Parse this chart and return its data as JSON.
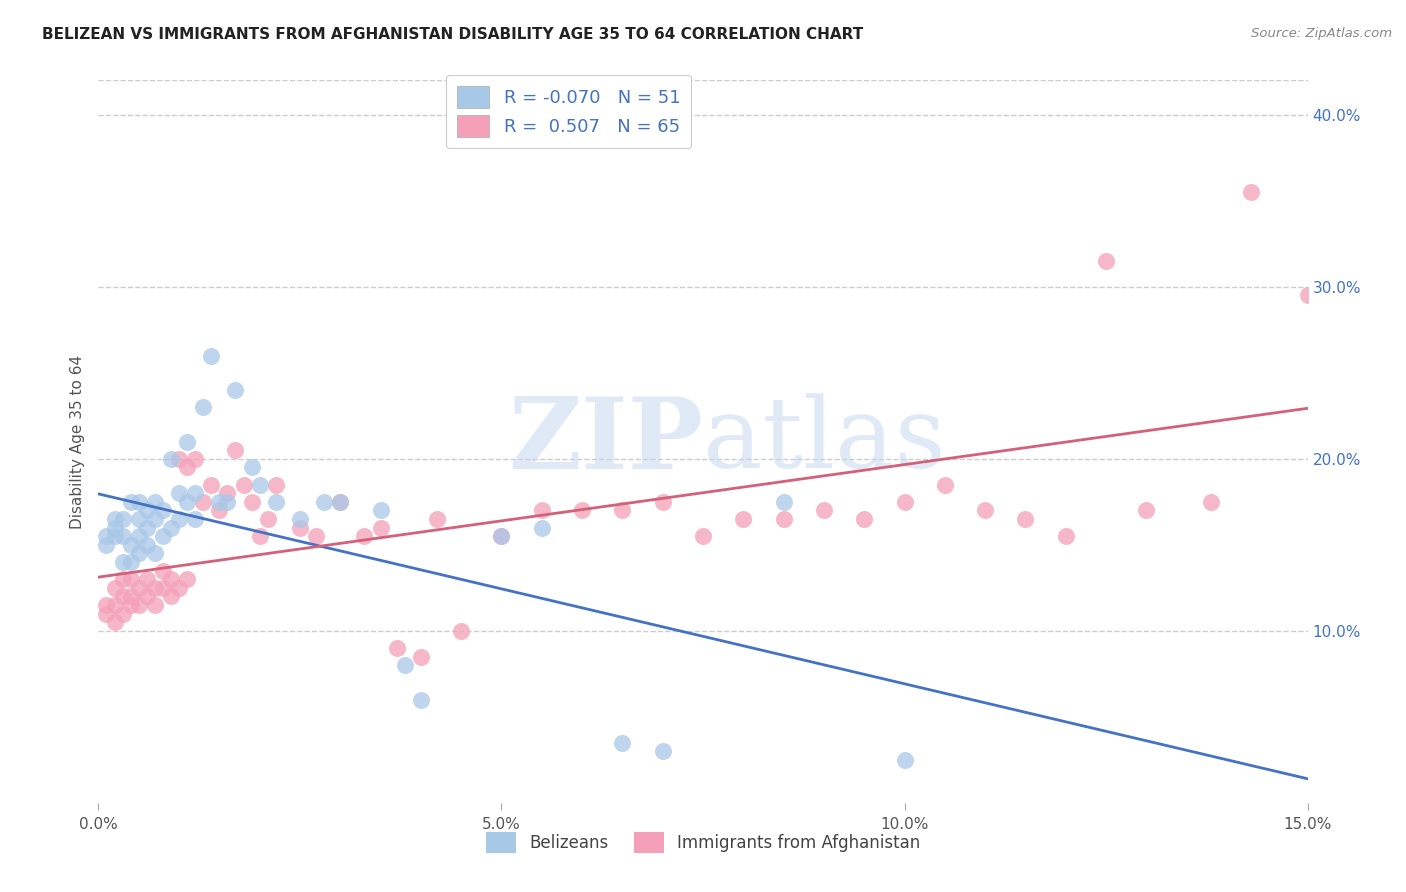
{
  "title": "BELIZEAN VS IMMIGRANTS FROM AFGHANISTAN DISABILITY AGE 35 TO 64 CORRELATION CHART",
  "source": "Source: ZipAtlas.com",
  "ylabel": "Disability Age 35 to 64",
  "xlim": [
    0.0,
    0.15
  ],
  "ylim": [
    0.0,
    0.42
  ],
  "yticks_right": [
    0.1,
    0.2,
    0.3,
    0.4
  ],
  "ytick_right_labels": [
    "10.0%",
    "20.0%",
    "30.0%",
    "40.0%"
  ],
  "xtick_vals": [
    0.0,
    0.05,
    0.1,
    0.15
  ],
  "xtick_labels": [
    "0.0%",
    "5.0%",
    "10.0%",
    "15.0%"
  ],
  "blue_R": -0.07,
  "pink_R": 0.507,
  "blue_N": 51,
  "pink_N": 65,
  "blue_color": "#A8C8E8",
  "pink_color": "#F4A0B8",
  "blue_line_color": "#4472C4",
  "pink_line_color": "#D4607A",
  "watermark_zip": "ZIP",
  "watermark_atlas": "atlas",
  "background_color": "#FFFFFF",
  "grid_color": "#CCCCCC",
  "blue_x": [
    0.001,
    0.001,
    0.002,
    0.002,
    0.002,
    0.003,
    0.003,
    0.003,
    0.004,
    0.004,
    0.004,
    0.005,
    0.005,
    0.005,
    0.005,
    0.006,
    0.006,
    0.006,
    0.007,
    0.007,
    0.007,
    0.008,
    0.008,
    0.009,
    0.009,
    0.01,
    0.01,
    0.011,
    0.011,
    0.012,
    0.012,
    0.013,
    0.014,
    0.015,
    0.016,
    0.017,
    0.019,
    0.02,
    0.022,
    0.025,
    0.028,
    0.03,
    0.035,
    0.038,
    0.04,
    0.05,
    0.055,
    0.065,
    0.07,
    0.085,
    0.1
  ],
  "blue_y": [
    0.15,
    0.155,
    0.16,
    0.155,
    0.165,
    0.14,
    0.155,
    0.165,
    0.14,
    0.15,
    0.175,
    0.145,
    0.155,
    0.165,
    0.175,
    0.15,
    0.16,
    0.17,
    0.145,
    0.165,
    0.175,
    0.155,
    0.17,
    0.16,
    0.2,
    0.165,
    0.18,
    0.175,
    0.21,
    0.165,
    0.18,
    0.23,
    0.26,
    0.175,
    0.175,
    0.24,
    0.195,
    0.185,
    0.175,
    0.165,
    0.175,
    0.175,
    0.17,
    0.08,
    0.06,
    0.155,
    0.16,
    0.035,
    0.03,
    0.175,
    0.025
  ],
  "pink_x": [
    0.001,
    0.001,
    0.002,
    0.002,
    0.002,
    0.003,
    0.003,
    0.003,
    0.004,
    0.004,
    0.004,
    0.005,
    0.005,
    0.006,
    0.006,
    0.007,
    0.007,
    0.008,
    0.008,
    0.009,
    0.009,
    0.01,
    0.01,
    0.011,
    0.011,
    0.012,
    0.013,
    0.014,
    0.015,
    0.016,
    0.017,
    0.018,
    0.019,
    0.02,
    0.021,
    0.022,
    0.025,
    0.027,
    0.03,
    0.033,
    0.035,
    0.037,
    0.04,
    0.042,
    0.045,
    0.05,
    0.055,
    0.06,
    0.065,
    0.07,
    0.075,
    0.08,
    0.085,
    0.09,
    0.095,
    0.1,
    0.105,
    0.11,
    0.115,
    0.12,
    0.125,
    0.13,
    0.138,
    0.143,
    0.15
  ],
  "pink_y": [
    0.11,
    0.115,
    0.105,
    0.115,
    0.125,
    0.11,
    0.12,
    0.13,
    0.115,
    0.12,
    0.13,
    0.115,
    0.125,
    0.12,
    0.13,
    0.115,
    0.125,
    0.125,
    0.135,
    0.12,
    0.13,
    0.125,
    0.2,
    0.13,
    0.195,
    0.2,
    0.175,
    0.185,
    0.17,
    0.18,
    0.205,
    0.185,
    0.175,
    0.155,
    0.165,
    0.185,
    0.16,
    0.155,
    0.175,
    0.155,
    0.16,
    0.09,
    0.085,
    0.165,
    0.1,
    0.155,
    0.17,
    0.17,
    0.17,
    0.175,
    0.155,
    0.165,
    0.165,
    0.17,
    0.165,
    0.175,
    0.185,
    0.17,
    0.165,
    0.155,
    0.315,
    0.17,
    0.175,
    0.355,
    0.295
  ]
}
